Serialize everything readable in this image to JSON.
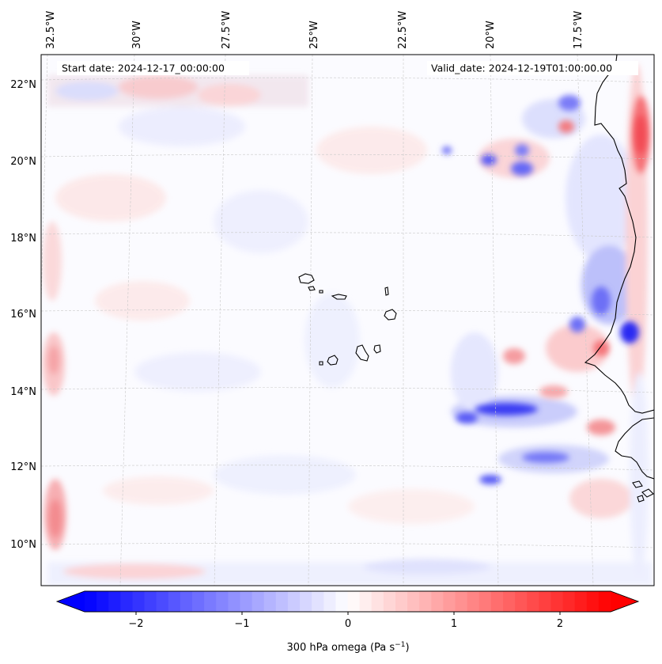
{
  "map": {
    "start_date": "Start date: 2024-12-17_00:00:00",
    "valid_date": "Valid_date: 2024-12-19T01:00:00.00",
    "lon_labels": [
      "32.5°W",
      "30°W",
      "27.5°W",
      "25°W",
      "22.5°W",
      "20°W",
      "17.5°W"
    ],
    "lat_labels": [
      "22°N",
      "20°N",
      "18°N",
      "16°N",
      "14°N",
      "12°N",
      "10°N"
    ]
  },
  "colorbar": {
    "tick_labels": [
      "−2",
      "−1",
      "0",
      "1",
      "2"
    ],
    "label": "300 hPa omega (Pa s",
    "label_sup": "−1",
    "label_close": ")",
    "vmin": -2.75,
    "vmax": 2.75,
    "colors": {
      "low": "#0000ff",
      "mid": "#ffffff",
      "high": "#ff0000"
    }
  }
}
